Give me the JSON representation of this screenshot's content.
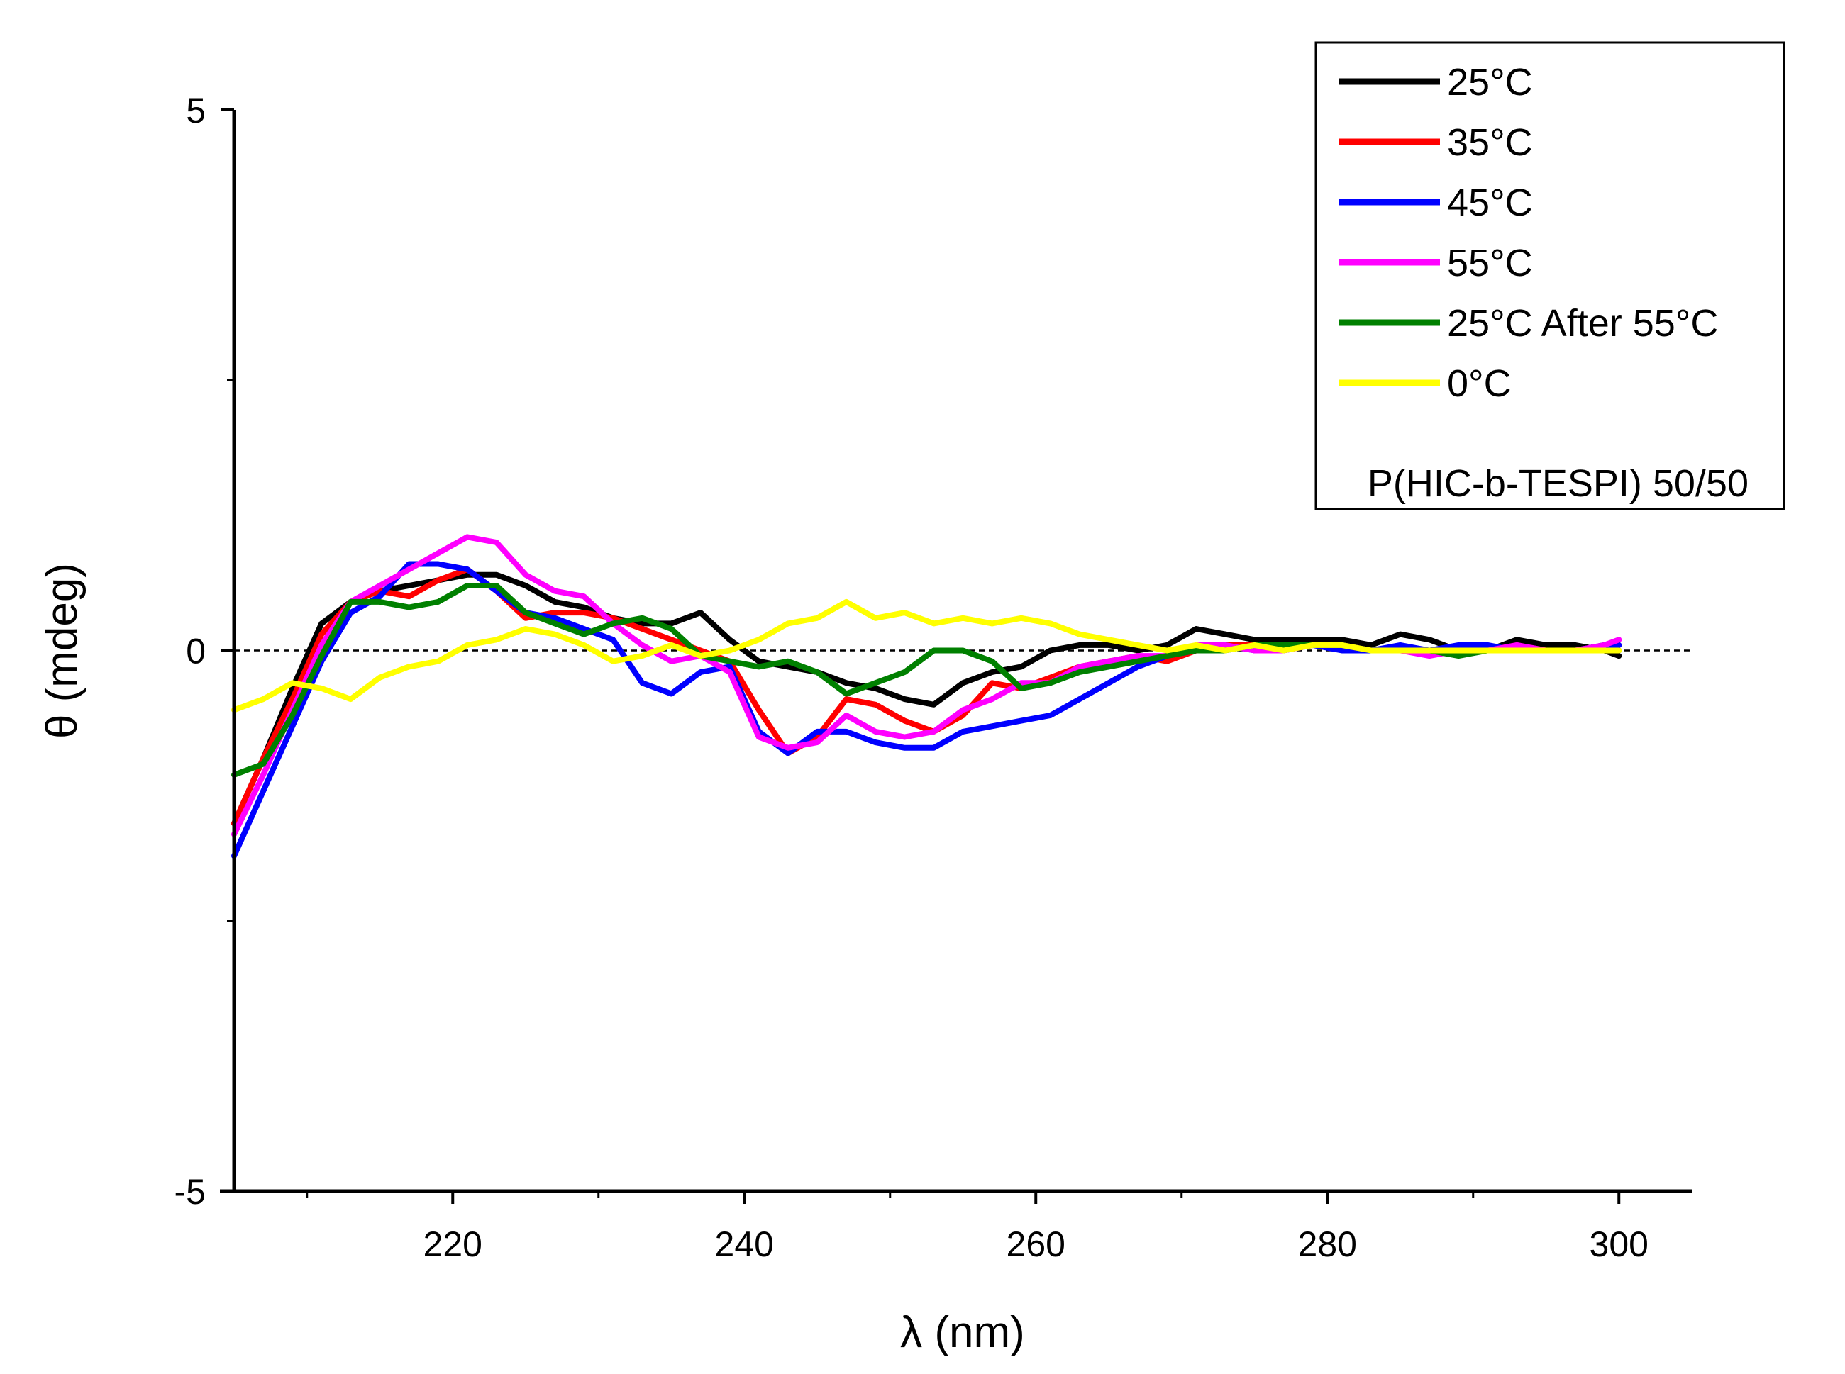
{
  "chart_data": {
    "type": "line",
    "title": "",
    "xlabel": "λ (nm)",
    "ylabel": "θ (mdeg)",
    "xlim": [
      205,
      305
    ],
    "ylim": [
      -5,
      5
    ],
    "x_ticks": [
      220,
      240,
      260,
      280,
      300
    ],
    "x_tick_labels": [
      "220",
      "240",
      "260",
      "280",
      "300"
    ],
    "y_ticks": [
      -5,
      0,
      5
    ],
    "y_tick_labels": [
      "-5",
      "0",
      "5"
    ],
    "zero_line": true,
    "legend_position": "top-right",
    "legend_note": "P(HIC-b-TESPI) 50/50",
    "x": [
      205,
      207,
      209,
      211,
      213,
      215,
      217,
      219,
      221,
      223,
      225,
      227,
      229,
      231,
      233,
      235,
      237,
      239,
      241,
      243,
      245,
      247,
      249,
      251,
      253,
      255,
      257,
      259,
      261,
      263,
      265,
      267,
      269,
      271,
      273,
      275,
      277,
      279,
      281,
      283,
      285,
      287,
      289,
      291,
      293,
      295,
      297,
      299,
      300
    ],
    "series": [
      {
        "name": "25°C",
        "color": "#000000",
        "values": [
          -1.6,
          -1.0,
          -0.35,
          0.25,
          0.45,
          0.55,
          0.6,
          0.65,
          0.7,
          0.7,
          0.6,
          0.45,
          0.4,
          0.3,
          0.25,
          0.25,
          0.35,
          0.1,
          -0.1,
          -0.15,
          -0.2,
          -0.3,
          -0.35,
          -0.45,
          -0.5,
          -0.3,
          -0.2,
          -0.15,
          0.0,
          0.05,
          0.05,
          0.0,
          0.05,
          0.2,
          0.15,
          0.1,
          0.1,
          0.1,
          0.1,
          0.05,
          0.15,
          0.1,
          0.0,
          0.0,
          0.1,
          0.05,
          0.05,
          0.0,
          -0.05
        ]
      },
      {
        "name": "35°C",
        "color": "#ff0000",
        "values": [
          -1.6,
          -1.0,
          -0.45,
          0.15,
          0.45,
          0.55,
          0.5,
          0.65,
          0.75,
          0.55,
          0.3,
          0.35,
          0.35,
          0.3,
          0.2,
          0.1,
          0.0,
          -0.1,
          -0.55,
          -0.95,
          -0.8,
          -0.45,
          -0.5,
          -0.65,
          -0.75,
          -0.6,
          -0.3,
          -0.35,
          -0.25,
          -0.15,
          -0.1,
          -0.05,
          -0.1,
          0.0,
          0.05,
          0.05,
          0.0,
          0.05,
          0.05,
          0.0,
          0.0,
          0.0,
          0.0,
          0.0,
          0.05,
          0.0,
          0.0,
          0.05,
          0.05
        ]
      },
      {
        "name": "45°C",
        "color": "#0000ff",
        "values": [
          -1.9,
          -1.3,
          -0.7,
          -0.1,
          0.35,
          0.5,
          0.8,
          0.8,
          0.75,
          0.55,
          0.35,
          0.3,
          0.2,
          0.1,
          -0.3,
          -0.4,
          -0.2,
          -0.15,
          -0.75,
          -0.95,
          -0.75,
          -0.75,
          -0.85,
          -0.9,
          -0.9,
          -0.75,
          -0.7,
          -0.65,
          -0.6,
          -0.45,
          -0.3,
          -0.15,
          -0.05,
          0.0,
          0.05,
          0.0,
          0.0,
          0.05,
          0.0,
          0.0,
          0.05,
          0.0,
          0.05,
          0.05,
          0.0,
          0.0,
          0.0,
          0.05,
          0.05
        ]
      },
      {
        "name": "55°C",
        "color": "#ff00ff",
        "values": [
          -1.7,
          -1.15,
          -0.55,
          0.05,
          0.45,
          0.6,
          0.75,
          0.9,
          1.05,
          1.0,
          0.7,
          0.55,
          0.5,
          0.25,
          0.05,
          -0.1,
          -0.05,
          -0.2,
          -0.8,
          -0.9,
          -0.85,
          -0.6,
          -0.75,
          -0.8,
          -0.75,
          -0.55,
          -0.45,
          -0.3,
          -0.3,
          -0.15,
          -0.1,
          -0.05,
          -0.05,
          0.05,
          0.05,
          0.0,
          0.0,
          0.05,
          0.05,
          0.0,
          0.0,
          -0.05,
          0.0,
          0.0,
          0.05,
          0.0,
          0.0,
          0.05,
          0.1
        ]
      },
      {
        "name": "25°C After 55°C",
        "color": "#008000",
        "values": [
          -1.15,
          -1.05,
          -0.6,
          -0.05,
          0.45,
          0.45,
          0.4,
          0.45,
          0.6,
          0.6,
          0.35,
          0.25,
          0.15,
          0.25,
          0.3,
          0.2,
          -0.05,
          -0.1,
          -0.15,
          -0.1,
          -0.2,
          -0.4,
          -0.3,
          -0.2,
          0.0,
          0.0,
          -0.1,
          -0.35,
          -0.3,
          -0.2,
          -0.15,
          -0.1,
          -0.05,
          0.0,
          0.0,
          0.05,
          0.05,
          0.05,
          0.05,
          0.0,
          0.0,
          0.0,
          -0.05,
          0.0,
          0.0,
          0.0,
          0.0,
          0.0,
          0.0
        ]
      },
      {
        "name": "0°C",
        "color": "#ffff00",
        "values": [
          -0.55,
          -0.45,
          -0.3,
          -0.35,
          -0.45,
          -0.25,
          -0.15,
          -0.1,
          0.05,
          0.1,
          0.2,
          0.15,
          0.05,
          -0.1,
          -0.05,
          0.05,
          -0.05,
          0.0,
          0.1,
          0.25,
          0.3,
          0.45,
          0.3,
          0.35,
          0.25,
          0.3,
          0.25,
          0.3,
          0.25,
          0.15,
          0.1,
          0.05,
          0.0,
          0.05,
          0.0,
          0.05,
          0.0,
          0.05,
          0.05,
          0.0,
          0.0,
          0.0,
          0.0,
          0.0,
          0.0,
          0.0,
          0.0,
          0.0,
          0.0
        ]
      }
    ]
  }
}
